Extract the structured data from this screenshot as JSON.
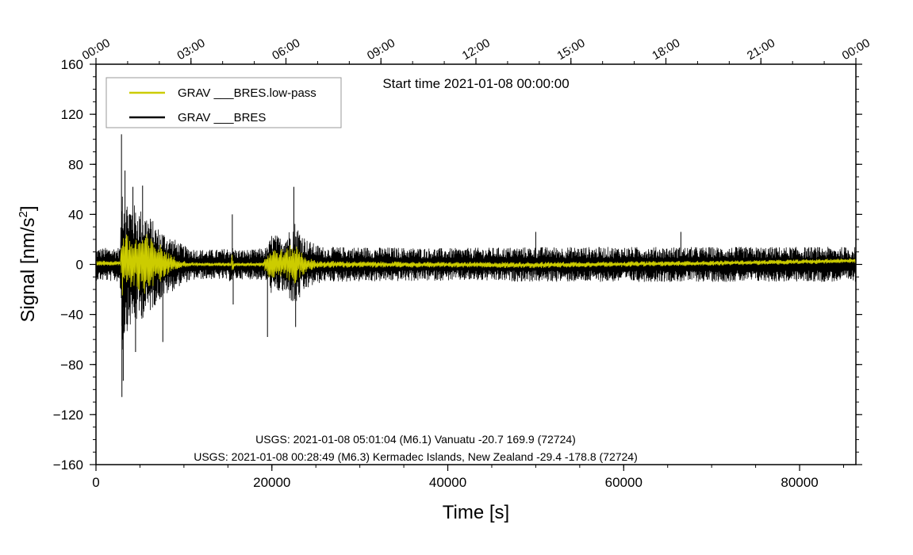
{
  "chart_data": {
    "type": "line",
    "title": "Start time 2021-01-08 00:00:00",
    "xlabel": "Time [s]",
    "ylabel_main": "Signal [nm/s",
    "ylabel_sup": "2",
    "ylabel_end": "]",
    "xlim": [
      0,
      86400
    ],
    "ylim": [
      -160,
      160
    ],
    "x_ticks": [
      0,
      20000,
      40000,
      60000,
      80000
    ],
    "x_tick_labels": [
      "0",
      "20000",
      "40000",
      "60000",
      "80000"
    ],
    "y_ticks": [
      -160,
      -120,
      -80,
      -40,
      0,
      40,
      80,
      120,
      160
    ],
    "y_tick_labels": [
      "−160",
      "−120",
      "−80",
      "−40",
      "0",
      "40",
      "80",
      "120",
      "160"
    ],
    "top_ticks": [
      0,
      10800,
      21600,
      32400,
      43200,
      54000,
      64800,
      75600,
      86400
    ],
    "top_tick_labels": [
      "00:00",
      "03:00",
      "06:00",
      "09:00",
      "12:00",
      "15:00",
      "18:00",
      "21:00",
      "00:00"
    ],
    "legend_position": "top-left",
    "series": [
      {
        "name": "GRAV ___BRES",
        "color": "#000000",
        "envelope": {
          "x": [
            0,
            2700,
            2900,
            3000,
            3300,
            4000,
            5000,
            6000,
            7000,
            8000,
            9000,
            10000,
            11000,
            12000,
            14000,
            15500,
            16000,
            18000,
            19500,
            20000,
            21000,
            22000,
            22600,
            23000,
            24000,
            25000,
            26000,
            30000,
            40000,
            50000,
            60000,
            70000,
            80000,
            86400
          ],
          "upper": [
            13,
            14,
            40,
            75,
            55,
            50,
            45,
            40,
            30,
            25,
            20,
            15,
            13,
            12,
            12,
            14,
            12,
            12,
            14,
            25,
            22,
            28,
            35,
            30,
            20,
            16,
            14,
            14,
            13,
            14,
            14,
            14,
            14,
            14
          ],
          "lower": [
            -13,
            -14,
            -40,
            -75,
            -55,
            -50,
            -45,
            -40,
            -30,
            -25,
            -20,
            -15,
            -13,
            -12,
            -12,
            -14,
            -12,
            -12,
            -14,
            -25,
            -22,
            -28,
            -35,
            -30,
            -20,
            -16,
            -14,
            -14,
            -13,
            -14,
            -14,
            -14,
            -14,
            -14
          ]
        },
        "spikes": [
          {
            "x": 2900,
            "y": 104
          },
          {
            "x": 2950,
            "y": -106
          },
          {
            "x": 3100,
            "y": -93
          },
          {
            "x": 3300,
            "y": 75
          },
          {
            "x": 4200,
            "y": 62
          },
          {
            "x": 4500,
            "y": -70
          },
          {
            "x": 5300,
            "y": 63
          },
          {
            "x": 7600,
            "y": -62
          },
          {
            "x": 15500,
            "y": 40
          },
          {
            "x": 15600,
            "y": -32
          },
          {
            "x": 19500,
            "y": -58
          },
          {
            "x": 22500,
            "y": 62
          },
          {
            "x": 22700,
            "y": -50
          },
          {
            "x": 50000,
            "y": 26
          },
          {
            "x": 66500,
            "y": 26
          }
        ]
      },
      {
        "name": "GRAV ___BRES.low-pass",
        "color": "#cccc00",
        "envelope": {
          "x": [
            0,
            2800,
            3000,
            3500,
            4500,
            5500,
            6500,
            7500,
            8500,
            9500,
            10500,
            12000,
            15400,
            15500,
            15700,
            19000,
            19500,
            20500,
            21500,
            22500,
            23000,
            24000,
            25000,
            30000,
            40000,
            50000,
            60000,
            70000,
            80000,
            86400
          ],
          "upper": [
            3,
            3,
            32,
            24,
            22,
            26,
            20,
            16,
            8,
            4,
            2,
            1.5,
            1.5,
            10,
            1.5,
            2,
            10,
            14,
            12,
            18,
            14,
            6,
            3,
            2.5,
            2,
            2,
            2.5,
            3,
            4,
            5
          ],
          "lower": [
            -1,
            -1,
            -30,
            -22,
            -20,
            -24,
            -18,
            -14,
            -6,
            -3,
            -2,
            -1.5,
            -1.5,
            -8,
            -1.5,
            -2,
            -10,
            -12,
            -10,
            -18,
            -12,
            -6,
            -3,
            -2.5,
            -2.5,
            -3,
            -2,
            -1,
            0,
            1
          ]
        }
      }
    ],
    "annotations": [
      "USGS: 2021-01-08 05:01:04 (M6.1) Vanuatu -20.7 169.9 (72724)",
      "USGS: 2021-01-08 00:28:49 (M6.3) Kermadec Islands, New Zealand -29.4 -178.8 (72724)"
    ]
  }
}
